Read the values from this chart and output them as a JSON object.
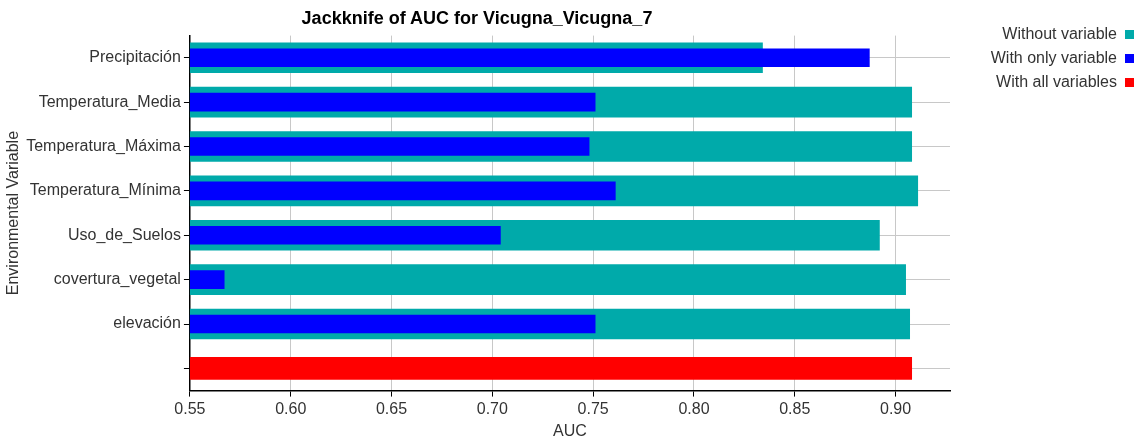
{
  "chart_data": {
    "type": "bar",
    "orientation": "horizontal",
    "title": "Jackknife of AUC for Vicugna_Vicugna_7",
    "xlabel": "AUC",
    "ylabel": "Environmental Variable",
    "categories": [
      "Precipitación",
      "Temperatura_Media",
      "Temperatura_Máxima",
      "Temperatura_Mínima",
      "Uso_de_Suelos",
      "covertura_vegetal",
      "elevación",
      null
    ],
    "series": [
      {
        "name": "Without variable",
        "color": "#00aaaa",
        "values": [
          0.834,
          0.908,
          0.908,
          0.911,
          0.892,
          0.905,
          0.907,
          null
        ]
      },
      {
        "name": "With only variable",
        "color": "#0000ff",
        "values": [
          0.887,
          0.751,
          0.748,
          0.761,
          0.704,
          0.567,
          0.751,
          null
        ]
      },
      {
        "name": "With all variables",
        "color": "#ff0000",
        "values": [
          null,
          null,
          null,
          null,
          null,
          null,
          null,
          0.908
        ]
      }
    ],
    "xlim": [
      0.55,
      0.927
    ],
    "xticks": [
      0.55,
      {
        "value": 0.6,
        "label": "0.60"
      },
      0.65,
      {
        "value": 0.7,
        "label": "0.70"
      },
      0.75,
      {
        "value": 0.8,
        "label": "0.80"
      },
      0.85,
      {
        "value": 0.9,
        "label": "0.90"
      }
    ],
    "grid": true,
    "legend": "top right"
  }
}
